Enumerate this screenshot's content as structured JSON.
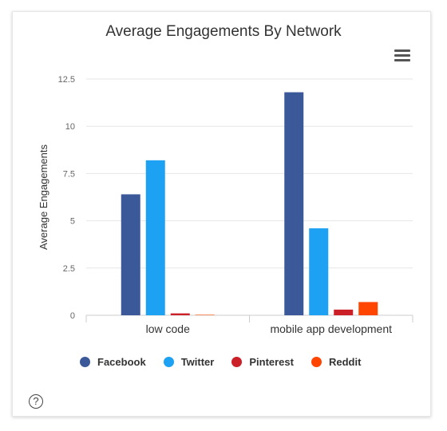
{
  "chart_data": {
    "type": "bar",
    "title": "Average Engagements By Network",
    "ylabel": "Average Engagements",
    "xlabel": "",
    "categories": [
      "low code",
      "mobile app development"
    ],
    "series": [
      {
        "name": "Facebook",
        "color": "#3b5998",
        "values": [
          6.4,
          11.8
        ]
      },
      {
        "name": "Twitter",
        "color": "#1da1f2",
        "values": [
          8.2,
          4.6
        ]
      },
      {
        "name": "Pinterest",
        "color": "#cb2027",
        "values": [
          0.1,
          0.3
        ]
      },
      {
        "name": "Reddit",
        "color": "#ff4500",
        "values": [
          0.0,
          0.7
        ]
      }
    ],
    "ylim": [
      0,
      12.5
    ],
    "yticks": [
      "0",
      "2.5",
      "5",
      "7.5",
      "10",
      "12.5"
    ],
    "grid": true,
    "legend_position": "bottom"
  },
  "ui": {
    "menu_icon": "hamburger-menu-icon",
    "help_icon": "question-circle-icon",
    "help_glyph": "?"
  }
}
